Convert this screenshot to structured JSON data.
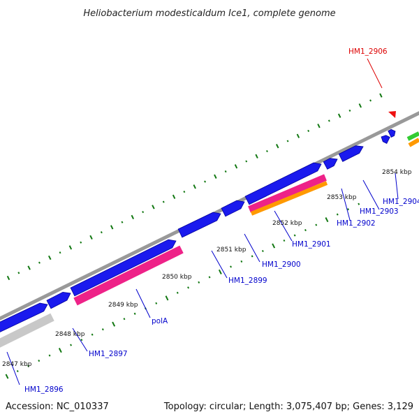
{
  "title": "Heliobacterium modesticaldum Ice1, complete genome",
  "footer": {
    "accession": "Accession: NC_010337",
    "summary": "Topology: circular; Length: 3,075,407 bp; Genes: 3,129"
  },
  "kbp_labels": [
    "2847 kbp",
    "2848 kbp",
    "2849 kbp",
    "2850 kbp",
    "2851 kbp",
    "2852 kbp",
    "2853 kbp",
    "2854 kbp"
  ],
  "gene_labels": [
    {
      "text": "HM1_2896",
      "color": "#0000cc"
    },
    {
      "text": "HM1_2897",
      "color": "#0000cc"
    },
    {
      "text": "polA",
      "color": "#0000cc"
    },
    {
      "text": "HM1_2899",
      "color": "#0000cc"
    },
    {
      "text": "HM1_2900",
      "color": "#0000cc"
    },
    {
      "text": "HM1_2901",
      "color": "#0000cc"
    },
    {
      "text": "HM1_2902",
      "color": "#0000cc"
    },
    {
      "text": "HM1_2903",
      "color": "#0000cc"
    },
    {
      "text": "HM1_2904",
      "color": "#0000cc"
    },
    {
      "text": "HM1_2906",
      "color": "#dd0000"
    }
  ],
  "colors": {
    "cds": "#1a1aee",
    "cds_edge": "#00009a",
    "rna": "#ee2288",
    "orange": "#ff9900",
    "green": "#33cc33",
    "pseudo": "#c8c8c8",
    "backbone": "#999999",
    "tick": "#117711",
    "marker": "#ee1111"
  }
}
